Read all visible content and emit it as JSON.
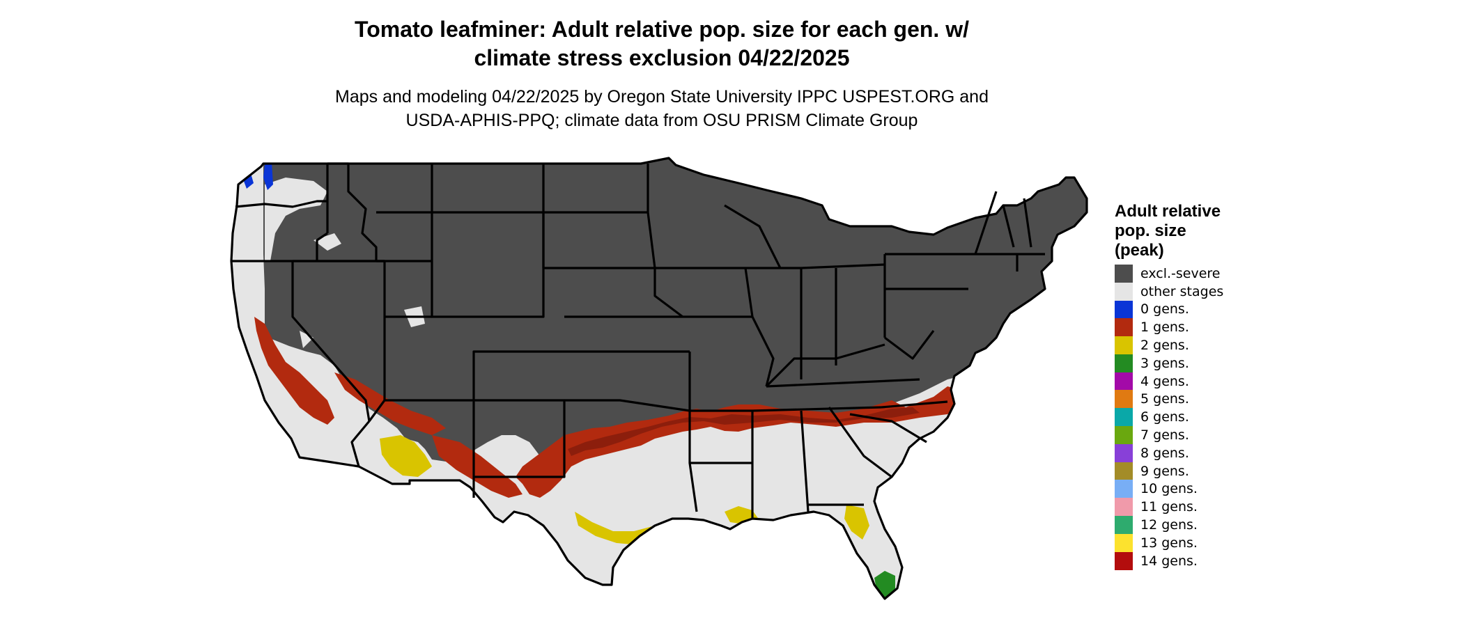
{
  "title": {
    "line1": "Tomato leafminer: Adult relative pop. size for each gen. w/",
    "line2": "climate stress exclusion 04/22/2025"
  },
  "subtitle": {
    "line1": "Maps and modeling 04/22/2025 by Oregon State University IPPC USPEST.ORG and",
    "line2": "USDA-APHIS-PPQ; climate data from OSU PRISM Climate Group"
  },
  "legend": {
    "title_line1": "Adult relative",
    "title_line2": "pop. size",
    "title_line3": "(peak)",
    "items": [
      {
        "label": "excl.-severe",
        "color": "#4d4d4d"
      },
      {
        "label": "other stages",
        "color": "#e5e5e5"
      },
      {
        "label": "0 gens.",
        "color": "#0a35d6"
      },
      {
        "label": "1 gens.",
        "color": "#b22a0f"
      },
      {
        "label": "2 gens.",
        "color": "#d9c400"
      },
      {
        "label": "3 gens.",
        "color": "#238b22"
      },
      {
        "label": "4 gens.",
        "color": "#a30aa8"
      },
      {
        "label": "5 gens.",
        "color": "#e07a12"
      },
      {
        "label": "6 gens.",
        "color": "#0aa8a8"
      },
      {
        "label": "7 gens.",
        "color": "#6aa80f"
      },
      {
        "label": "8 gens.",
        "color": "#8840d8"
      },
      {
        "label": "9 gens.",
        "color": "#a38c28"
      },
      {
        "label": "10 gens.",
        "color": "#78aef5"
      },
      {
        "label": "11 gens.",
        "color": "#f09aaa"
      },
      {
        "label": "12 gens.",
        "color": "#2eab6e"
      },
      {
        "label": "13 gens.",
        "color": "#fce22e"
      },
      {
        "label": "14 gens.",
        "color": "#b30d0d"
      }
    ]
  },
  "map": {
    "region": "Contiguous United States",
    "colors": {
      "excluded": "#4d4d4d",
      "other_stages": "#e5e5e5",
      "one_gen": "#b22a0f",
      "one_gen_dark": "#8c1e0c",
      "two_gens": "#d9c400",
      "three_gens": "#238b22",
      "zero_gens": "#0a35d6",
      "border": "#000000"
    }
  }
}
